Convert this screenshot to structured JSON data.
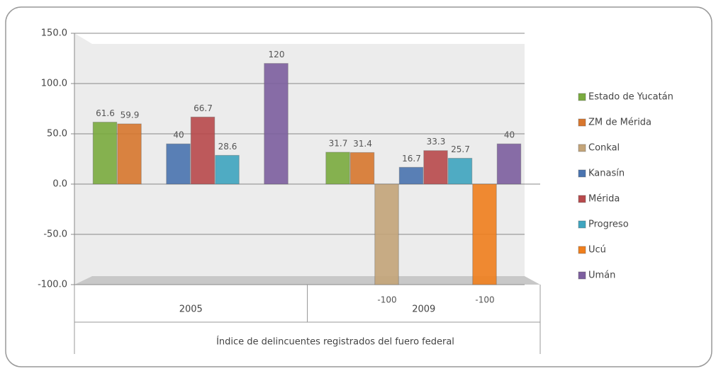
{
  "chart_data": {
    "type": "bar",
    "categories": [
      "2005",
      "2009"
    ],
    "group_label": "Índice de delincuentes registrados del fuero federal",
    "series": [
      {
        "name": "Estado de Yucatán",
        "color": "#7aab3f",
        "values": [
          61.6,
          31.7
        ]
      },
      {
        "name": "ZM de Mérida",
        "color": "#d8772e",
        "values": [
          59.9,
          31.4
        ]
      },
      {
        "name": "Conkal",
        "color": "#c4a579",
        "values": [
          null,
          -100
        ]
      },
      {
        "name": "Kanasín",
        "color": "#4a74b0",
        "values": [
          40,
          16.7
        ]
      },
      {
        "name": "Mérida",
        "color": "#b84a4c",
        "values": [
          66.7,
          33.3
        ]
      },
      {
        "name": "Progreso",
        "color": "#3fa5bf",
        "values": [
          28.6,
          25.7
        ]
      },
      {
        "name": "Ucú",
        "color": "#f07f1d",
        "values": [
          null,
          -100
        ]
      },
      {
        "name": "Umán",
        "color": "#7d5f9f",
        "values": [
          120,
          40
        ]
      }
    ],
    "ylim": [
      -100,
      150
    ],
    "yticks": [
      {
        "value": -100,
        "label": "-100.0"
      },
      {
        "value": -50,
        "label": "-50.0"
      },
      {
        "value": 0,
        "label": "0.0"
      },
      {
        "value": 50,
        "label": "50.0"
      },
      {
        "value": 100,
        "label": "100.0"
      },
      {
        "value": 150,
        "label": "150.0"
      }
    ],
    "grid": true,
    "legend": "right"
  }
}
